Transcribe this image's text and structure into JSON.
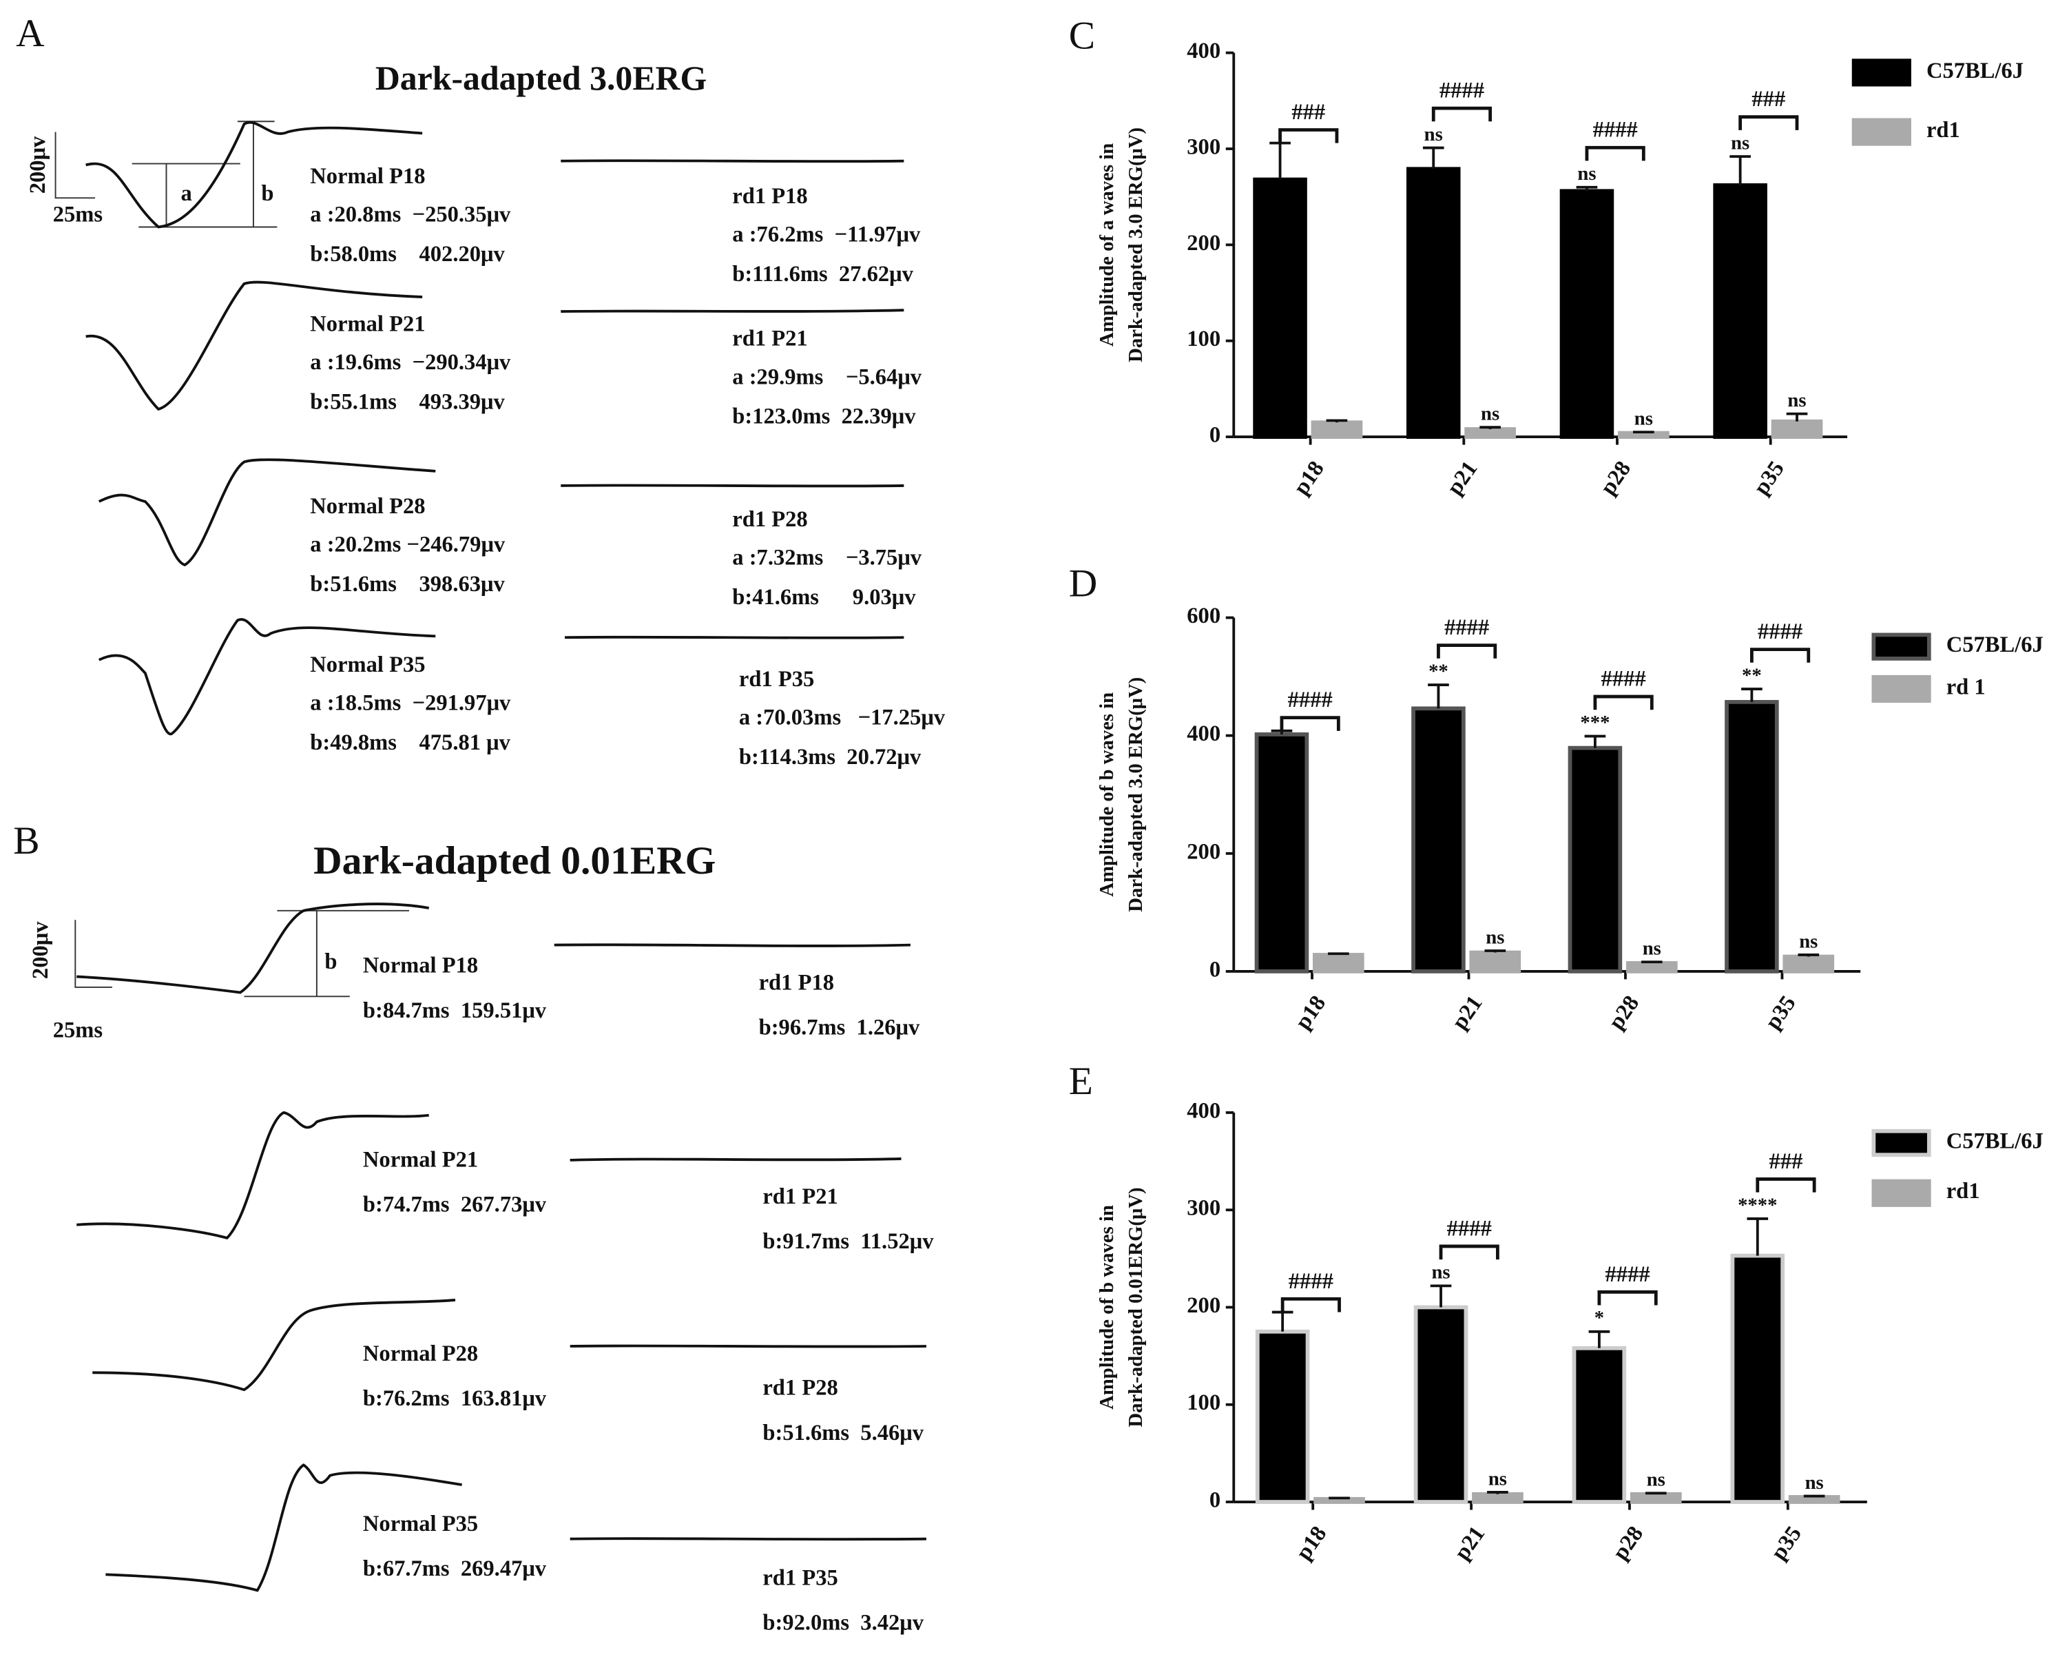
{
  "panel_a": {
    "letter": "A",
    "title": "Dark-adapted 3.0ERG",
    "scale_y": "200μv",
    "scale_x": "25ms",
    "wave_a": "a",
    "wave_b": "b",
    "recordings": [
      {
        "label": "Normal P18",
        "a": "a :20.8ms  −250.35μv",
        "b": "b:58.0ms    402.20μv"
      },
      {
        "label": "rd1 P18",
        "a": "a :76.2ms  −11.97μv",
        "b": "b:111.6ms  27.62μv"
      },
      {
        "label": "Normal P21",
        "a": "a :19.6ms  −290.34μv",
        "b": "b:55.1ms    493.39μv"
      },
      {
        "label": "rd1 P21",
        "a": "a :29.9ms    −5.64μv",
        "b": "b:123.0ms  22.39μv"
      },
      {
        "label": "Normal P28",
        "a": "a :20.2ms −246.79μv",
        "b": "b:51.6ms    398.63μv"
      },
      {
        "label": "rd1 P28",
        "a": "a :7.32ms    −3.75μv",
        "b": "b:41.6ms      9.03μv"
      },
      {
        "label": "Normal P35",
        "a": "a :18.5ms  −291.97μv",
        "b": "b:49.8ms    475.81 μv"
      },
      {
        "label": "rd1 P35",
        "a": "a :70.03ms   −17.25μv",
        "b": "b:114.3ms  20.72μv"
      }
    ]
  },
  "panel_b": {
    "letter": "B",
    "title": "Dark-adapted 0.01ERG",
    "scale_y": "200μv",
    "scale_x": "25ms",
    "wave_b": "b",
    "recordings": [
      {
        "label": "Normal P18",
        "b": "b:84.7ms  159.51μv"
      },
      {
        "label": "rd1 P18",
        "b": "b:96.7ms  1.26μv"
      },
      {
        "label": "Normal P21",
        "b": "b:74.7ms  267.73μv"
      },
      {
        "label": "rd1 P21",
        "b": "b:91.7ms  11.52μv"
      },
      {
        "label": "Normal P28",
        "b": "b:76.2ms  163.81μv"
      },
      {
        "label": "rd1 P28",
        "b": "b:51.6ms  5.46μv"
      },
      {
        "label": "Normal P35",
        "b": "b:67.7ms  269.47μv"
      },
      {
        "label": "rd1 P35",
        "b": "b:92.0ms  3.42μv"
      }
    ]
  },
  "chart_data": [
    {
      "type": "bar",
      "letter": "C",
      "ylabel": [
        "Amplitude of a waves in",
        "Dark-adapted 3.0 ERG(μV)"
      ],
      "categories": [
        "p18",
        "p21",
        "p28",
        "p35"
      ],
      "ylim": [
        0,
        400
      ],
      "yticks": [
        0,
        100,
        200,
        300,
        400
      ],
      "comparisons": [
        "###",
        "####",
        "####",
        "###"
      ],
      "series": [
        {
          "name": "C57BL/6J",
          "color": "#000000",
          "outline": "#000000",
          "values": [
            268,
            279,
            256,
            262
          ],
          "errors": [
            38,
            22,
            4,
            30
          ],
          "annotations": [
            null,
            "ns",
            "ns",
            "ns"
          ]
        },
        {
          "name": "rd1",
          "color": "#aaaaaa",
          "outline": "#aaaaaa",
          "values": [
            15,
            8,
            4,
            16
          ],
          "errors": [
            2,
            2,
            1,
            8
          ],
          "annotations": [
            null,
            "ns",
            "ns",
            "ns"
          ]
        }
      ]
    },
    {
      "type": "bar",
      "letter": "D",
      "ylabel": [
        "Amplitude of b waves in",
        "Dark-adapted 3.0 ERG(μV)"
      ],
      "categories": [
        "p18",
        "p21",
        "p28",
        "p35"
      ],
      "ylim": [
        0,
        600
      ],
      "yticks": [
        0,
        200,
        400,
        600
      ],
      "comparisons": [
        "####",
        "####",
        "####",
        "####"
      ],
      "series": [
        {
          "name": "C57BL/6J",
          "color": "#000000",
          "outline": "#555555",
          "values": [
            402,
            446,
            379,
            457
          ],
          "errors": [
            6,
            40,
            20,
            22
          ],
          "annotations": [
            null,
            "**",
            "***",
            "**"
          ]
        },
        {
          "name": "rd 1",
          "color": "#aaaaaa",
          "outline": "#aaaaaa",
          "values": [
            28,
            32,
            14,
            25
          ],
          "errors": [
            2,
            3,
            2,
            3
          ],
          "annotations": [
            null,
            "ns",
            "ns",
            "ns"
          ]
        }
      ]
    },
    {
      "type": "bar",
      "letter": "E",
      "ylabel": [
        "Amplitude of b waves in",
        "Dark-adapted 0.01ERG(μV)"
      ],
      "categories": [
        "p18",
        "p21",
        "p28",
        "p35"
      ],
      "ylim": [
        0,
        400
      ],
      "yticks": [
        0,
        100,
        200,
        300,
        400
      ],
      "comparisons": [
        "####",
        "####",
        "####",
        "###"
      ],
      "series": [
        {
          "name": "C57BL/6J",
          "color": "#000000",
          "outline": "#cccccc",
          "values": [
            175,
            200,
            158,
            253
          ],
          "errors": [
            20,
            22,
            17,
            38
          ],
          "annotations": [
            null,
            "ns",
            "*",
            "****"
          ]
        },
        {
          "name": "rd1",
          "color": "#aaaaaa",
          "outline": "#aaaaaa",
          "values": [
            3,
            8,
            8,
            5
          ],
          "errors": [
            1,
            2,
            1,
            1
          ],
          "annotations": [
            null,
            "ns",
            "ns",
            "ns"
          ]
        }
      ]
    }
  ]
}
